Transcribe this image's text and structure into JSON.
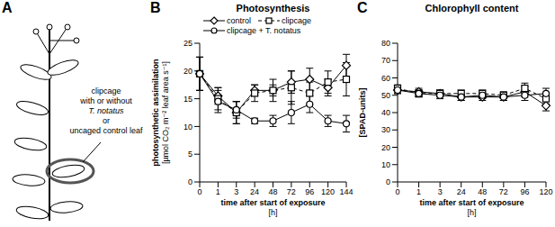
{
  "panel_a": {
    "panel_label": "A",
    "annotation": [
      "clipcage",
      "with or without",
      "T. notatus",
      "or",
      "uncaged control leaf"
    ]
  },
  "chart_data": [
    {
      "type": "line",
      "panel_label": "B",
      "title": "Photosynthesis",
      "y_label": [
        "photosynthetic assimilation",
        "[µmol CO₂ m⁻² leaf area s⁻¹]"
      ],
      "x_label": [
        "time after start of exposure",
        "[h]"
      ],
      "categories": [
        0,
        1,
        3,
        24,
        48,
        72,
        96,
        120,
        144
      ],
      "ylim": [
        0,
        25
      ],
      "yticks": [
        0,
        5,
        10,
        15,
        20,
        25
      ],
      "legend": "top",
      "series": [
        {
          "name": "control",
          "color": "#000000",
          "marker": "diamond",
          "line_style": "solid",
          "values": [
            19.5,
            15.5,
            12.5,
            16.5,
            16.5,
            18,
            18.5,
            17,
            21
          ],
          "errors": [
            3,
            1.5,
            2,
            1,
            1,
            2,
            2,
            1.5,
            2
          ]
        },
        {
          "name": "clipcage",
          "color": "#000000",
          "marker": "square",
          "line_style": "dashed",
          "values": [
            19.5,
            15,
            12.5,
            16,
            16.5,
            17,
            16,
            18,
            18.5
          ],
          "errors": [
            3,
            2,
            2,
            1.5,
            2,
            3,
            2,
            2,
            3
          ]
        },
        {
          "name": "clipcage + T. notatus",
          "color": "#000000",
          "marker": "circle",
          "line_style": "solid",
          "values": [
            19.5,
            14.5,
            13,
            11,
            11,
            12.5,
            14,
            11,
            10.5
          ],
          "errors": [
            3,
            2,
            1.5,
            0.5,
            1,
            2,
            1.5,
            1,
            1.5
          ]
        }
      ]
    },
    {
      "type": "line",
      "panel_label": "C",
      "title": "Chlorophyll content",
      "y_label": [
        "[SPAD-units]"
      ],
      "x_label": [
        "time after start of exposure",
        "[h]"
      ],
      "categories": [
        0,
        1,
        3,
        24,
        48,
        72,
        96,
        120
      ],
      "ylim": [
        0,
        80
      ],
      "yticks": [
        0,
        10,
        20,
        30,
        40,
        50,
        60,
        70,
        80
      ],
      "series": [
        {
          "color": "#000000",
          "marker": "diamond",
          "line_style": "solid",
          "values": [
            53,
            52,
            51,
            49,
            49,
            49,
            52,
            44
          ],
          "errors": [
            2,
            2,
            2,
            2,
            2,
            2,
            3,
            3
          ]
        },
        {
          "color": "#000000",
          "marker": "square",
          "line_style": "dashed",
          "values": [
            54,
            51,
            51,
            51,
            51,
            50,
            54,
            48
          ],
          "errors": [
            2,
            2,
            2,
            2,
            2,
            2,
            3,
            3
          ]
        },
        {
          "color": "#000000",
          "marker": "circle",
          "line_style": "solid",
          "values": [
            53,
            51,
            50,
            49,
            50,
            49,
            50,
            51
          ],
          "errors": [
            2,
            2,
            2,
            2,
            2,
            2,
            3,
            3
          ]
        }
      ]
    }
  ]
}
